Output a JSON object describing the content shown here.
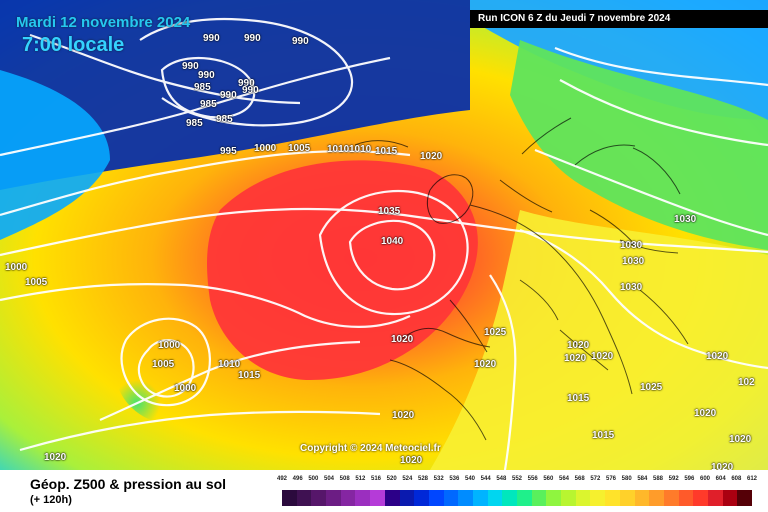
{
  "header": {
    "date": "Mardi 12 novembre 2024",
    "time": "7:00 locale",
    "run": "Run ICON 6 Z du Jeudi 7 novembre 2024"
  },
  "copyright": "Copyright © 2024 Meteociel.fr",
  "footer": {
    "title": "Géop. Z500 & pression au sol",
    "subtitle": "(+ 120h)"
  },
  "isobar_labels": [
    {
      "text": "990"
    },
    {
      "text": "990"
    },
    {
      "text": "990"
    },
    {
      "text": "990"
    },
    {
      "text": "990"
    },
    {
      "text": "990"
    },
    {
      "text": "990"
    },
    {
      "text": "990"
    },
    {
      "text": "985"
    },
    {
      "text": "985"
    },
    {
      "text": "985"
    },
    {
      "text": "985"
    },
    {
      "text": "995"
    },
    {
      "text": "1000"
    },
    {
      "text": "1005"
    },
    {
      "text": "1010"
    },
    {
      "text": "1010"
    },
    {
      "text": "1015"
    },
    {
      "text": "1020"
    },
    {
      "text": "1035"
    },
    {
      "text": "1040"
    },
    {
      "text": "1030"
    },
    {
      "text": "1030"
    },
    {
      "text": "1030"
    },
    {
      "text": "1030"
    },
    {
      "text": "1025"
    },
    {
      "text": "1020"
    },
    {
      "text": "1020"
    },
    {
      "text": "1020"
    },
    {
      "text": "1020"
    },
    {
      "text": "1025"
    },
    {
      "text": "1015"
    },
    {
      "text": "1015"
    },
    {
      "text": "1020"
    },
    {
      "text": "1020"
    },
    {
      "text": "1020"
    },
    {
      "text": "1020"
    },
    {
      "text": "1000"
    },
    {
      "text": "1005"
    },
    {
      "text": "1000"
    },
    {
      "text": "1005"
    },
    {
      "text": "1000"
    },
    {
      "text": "1010"
    },
    {
      "text": "1015"
    },
    {
      "text": "1020"
    },
    {
      "text": "1020"
    },
    {
      "text": "1020"
    },
    {
      "text": "1020"
    },
    {
      "text": "102"
    }
  ],
  "legend": {
    "ticks": [
      "492",
      "496",
      "500",
      "504",
      "508",
      "512",
      "516",
      "520",
      "524",
      "528",
      "532",
      "536",
      "540",
      "544",
      "548",
      "552",
      "556",
      "560",
      "564",
      "568",
      "572",
      "576",
      "580",
      "584",
      "588",
      "592",
      "596",
      "600",
      "604",
      "608",
      "612"
    ],
    "colors": [
      "#2b0a3d",
      "#3f1152",
      "#56166a",
      "#6c1d84",
      "#8526a2",
      "#9b2fbf",
      "#b53bd8",
      "#2c0088",
      "#0a1aaf",
      "#0028d8",
      "#0046ff",
      "#0068ff",
      "#008cff",
      "#00b4ff",
      "#00d6f0",
      "#00e7bd",
      "#1ff08b",
      "#59f05c",
      "#8ff53f",
      "#b8f530",
      "#dbf52e",
      "#f6f02e",
      "#ffe32a",
      "#ffd12a",
      "#ffb82a",
      "#ff9c2a",
      "#ff7b2a",
      "#ff5a2a",
      "#ff3a2a",
      "#e01f2a",
      "#aa0011",
      "#550007"
    ]
  }
}
